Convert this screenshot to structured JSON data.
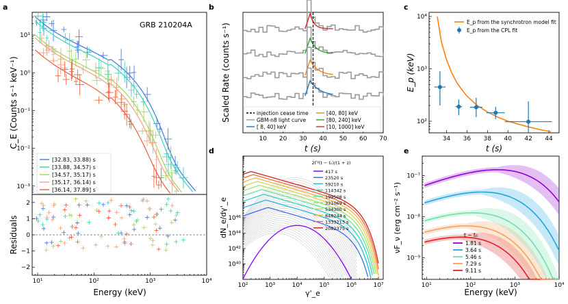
{
  "colors": {
    "blue": "#1f77b4",
    "orange": "#ff7f0e",
    "green": "#2ca02c",
    "red": "#d62728",
    "gray": "#9a9a9a",
    "cyan": "#17becf",
    "teal": "#3fd7b8",
    "lime": "#b8d86b",
    "salmon": "#f4a582",
    "coral": "#ef6548",
    "purple": "#8f00ff"
  },
  "panels": {
    "a": {
      "label": "a",
      "annotation": "GRB 210204A",
      "ylabel": "C_E (Counts s⁻¹ keV⁻¹)",
      "resid_label": "Residuals",
      "xlabel": "Energy (keV)"
    },
    "b": {
      "label": "b",
      "ylabel": "Scaled Rate (counts s⁻¹)",
      "xlabel": "t (s)"
    },
    "c": {
      "label": "c",
      "ylabel": "E_p (keV)",
      "xlabel": "t (s)"
    },
    "d": {
      "label": "d",
      "ylabel": "dN_e/dγ'_e",
      "xlabel": "γ'_e",
      "legend_title": "2Γ²(t − t₀)/(1 + z)"
    },
    "e": {
      "label": "e",
      "ylabel": "νF_ν (erg cm⁻² s⁻¹)",
      "xlabel": "Energy (keV)",
      "legend_title": "t − t₀"
    }
  },
  "chart_data": [
    {
      "id": "a",
      "type": "scatter",
      "title": "GRB 210204A",
      "xlabel": "Energy (keV)",
      "ylabel": "C_E (Counts s⁻¹ keV⁻¹)",
      "xlim": [
        8,
        10000
      ],
      "ylim": [
        0.0006,
        40
      ],
      "xscale": "log",
      "yscale": "log",
      "xticks": [
        "10¹",
        "10²",
        "10³",
        "10⁴"
      ],
      "yticks": [
        "10⁻³",
        "10⁻²",
        "10⁻¹",
        "10⁰",
        "10¹"
      ],
      "legend": [
        "[32.83, 33.88) s",
        "[33.88, 34.57) s",
        "[34.57, 35.17) s",
        "[35.17, 36.14) s",
        "[36.14, 37.89] s"
      ],
      "series_colors": [
        "#4a7fe0",
        "#3dd6c3",
        "#a6d96a",
        "#f4a582",
        "#ef6548"
      ],
      "model_peak_c": [
        9.0,
        7.0,
        3.0,
        2.5,
        1.2
      ],
      "residuals": {
        "ylabel": "Residuals",
        "ylim": [
          -2.5,
          2.5
        ],
        "yticks": [
          "−2",
          "−1",
          "0",
          "1",
          "2"
        ]
      }
    },
    {
      "id": "b",
      "type": "line",
      "xlabel": "t (s)",
      "ylabel": "Scaled Rate (counts s⁻¹)",
      "xlim": [
        0,
        70
      ],
      "xticks": [
        "10",
        "20",
        "30",
        "40",
        "50",
        "60",
        "70"
      ],
      "injection_cease_time": 35,
      "legend": [
        "injection cease time",
        "GBM-n8 light curve",
        "[ 8, 40] keV",
        "[40, 80] keV",
        "[80, 240] keV",
        "[10, 1000] keV"
      ],
      "band_colors": [
        "#1f77b4",
        "#ff7f0e",
        "#2ca02c",
        "#d62728"
      ]
    },
    {
      "id": "c",
      "type": "scatter",
      "xlabel": "t (s)",
      "ylabel": "E_p (keV)",
      "xlim": [
        32.3,
        45
      ],
      "ylim": [
        60,
        12000
      ],
      "yscale": "log",
      "xticks": [
        "34",
        "36",
        "38",
        "40",
        "42",
        "44"
      ],
      "yticks": [
        "10²",
        "10³",
        "10⁴"
      ],
      "legend": [
        "E_p from the synchrotron model fit",
        "E_p from the CPL fit"
      ],
      "points": [
        {
          "t": 33.36,
          "terr": 0.55,
          "ep": 450,
          "lo": 200,
          "hi": 900
        },
        {
          "t": 35.2,
          "terr": 0.33,
          "ep": 190,
          "lo": 130,
          "hi": 260
        },
        {
          "t": 36.9,
          "terr": 0.6,
          "ep": 185,
          "lo": 120,
          "hi": 280
        },
        {
          "t": 38.8,
          "terr": 0.9,
          "ep": 145,
          "lo": 110,
          "hi": 190
        },
        {
          "t": 42.0,
          "terr": 2.3,
          "ep": 98,
          "lo": 60,
          "hi": 240
        }
      ],
      "model_curve": {
        "t": [
          33.1,
          33.5,
          34,
          34.5,
          35,
          35.5,
          36,
          37,
          38,
          39,
          40,
          41,
          42,
          43,
          44.2
        ],
        "ep": [
          10000,
          3300,
          1500,
          850,
          550,
          400,
          300,
          200,
          150,
          120,
          100,
          88,
          78,
          70,
          63
        ]
      }
    },
    {
      "id": "d",
      "type": "line",
      "xlabel": "γ'_e",
      "ylabel": "dN_e/dγ'_e",
      "xlim": [
        100,
        15000000
      ],
      "ylim": [
        1e+39,
        1e+47
      ],
      "xscale": "log",
      "yscale": "log",
      "xticks": [
        "10²",
        "10³",
        "10⁴",
        "10⁵",
        "10⁶",
        "10⁷"
      ],
      "yticks": [
        "10⁴⁰",
        "10⁴²",
        "10⁴⁴",
        "10⁴⁶"
      ],
      "legend_title": "2Γ²(t − t₀)/(1 + z)",
      "series": [
        {
          "name": "417 s",
          "color": "#8b00ff"
        },
        {
          "name": "23520 s",
          "color": "#3a6df0"
        },
        {
          "name": "59210 s",
          "color": "#24b6e6"
        },
        {
          "name": "114342 s",
          "color": "#2bd4c4"
        },
        {
          "name": "199508 s",
          "color": "#5fe39a"
        },
        {
          "name": "331069 s",
          "color": "#a4e36a"
        },
        {
          "name": "534300 s",
          "color": "#d9d654"
        },
        {
          "name": "848244 s",
          "color": "#f7b24a"
        },
        {
          "name": "1333213 s",
          "color": "#f36b3a"
        },
        {
          "name": "2082375 s",
          "color": "#d61f1f"
        }
      ]
    },
    {
      "id": "e",
      "type": "area",
      "xlabel": "Energy (keV)",
      "ylabel": "νF_ν (erg cm⁻² s⁻¹)",
      "xlim": [
        8,
        10000
      ],
      "ylim": [
        3e-10,
        3e-07
      ],
      "xscale": "log",
      "yscale": "log",
      "xticks": [
        "10¹",
        "10²",
        "10³",
        "10⁴"
      ],
      "yticks": [
        "10⁻⁹",
        "10⁻⁸",
        "10⁻⁷"
      ],
      "legend_title": "t − t₀",
      "series": [
        {
          "name": "1.81 s",
          "color": "#9400d3",
          "peak": 1.4e-07,
          "epk": 400
        },
        {
          "name": "3.64 s",
          "color": "#1fa5e0",
          "peak": 4e-08,
          "epk": 180
        },
        {
          "name": "5.46 s",
          "color": "#6ee0a8",
          "peak": 1.25e-08,
          "epk": 110
        },
        {
          "name": "7.29 s",
          "color": "#f5a05a",
          "peak": 6e-09,
          "epk": 80
        },
        {
          "name": "9.11 s",
          "color": "#e02020",
          "peak": 3.2e-09,
          "epk": 60
        }
      ]
    }
  ]
}
